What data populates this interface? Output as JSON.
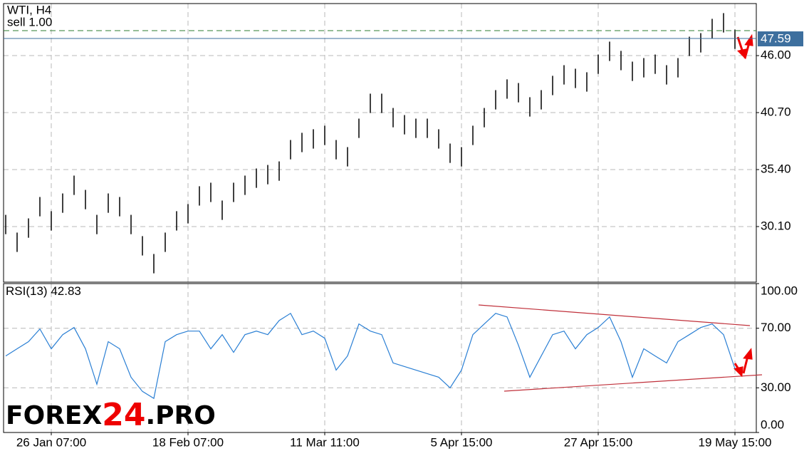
{
  "chart_data": [
    {
      "type": "ohlc",
      "title": "WTI, H4",
      "order_label": "sell 1.00",
      "color": "#000000",
      "high": [
        31.19,
        29.54,
        30.86,
        32.85,
        31.53,
        33.18,
        34.84,
        33.51,
        31.19,
        33.18,
        32.85,
        31.19,
        29.21,
        27.55,
        29.54,
        31.53,
        32.19,
        33.85,
        34.18,
        32.52,
        34.18,
        34.84,
        35.5,
        35.83,
        36.16,
        38.15,
        38.82,
        39.15,
        39.48,
        38.15,
        37.49,
        40.14,
        42.46,
        42.46,
        41.13,
        40.47,
        40.14,
        40.14,
        39.15,
        37.82,
        37.49,
        39.48,
        41.13,
        42.79,
        43.79,
        43.45,
        42.13,
        42.79,
        44.12,
        45.11,
        44.78,
        44.45,
        46.1,
        47.3,
        46.44,
        45.44,
        45.77,
        46.1,
        45.11,
        45.77,
        47.76,
        48.09,
        49.42,
        49.95,
        48.42
      ],
      "low": [
        29.39,
        27.74,
        29.06,
        31.05,
        29.73,
        31.38,
        33.04,
        31.71,
        29.39,
        31.38,
        31.05,
        29.39,
        27.41,
        25.75,
        27.74,
        29.73,
        30.39,
        32.05,
        32.38,
        30.72,
        32.38,
        33.04,
        33.7,
        34.03,
        34.36,
        36.35,
        37.02,
        37.35,
        37.68,
        36.35,
        35.69,
        38.34,
        40.66,
        40.66,
        39.33,
        38.67,
        38.34,
        38.34,
        37.35,
        36.02,
        35.69,
        37.68,
        39.33,
        40.99,
        41.99,
        41.65,
        40.33,
        40.99,
        42.32,
        43.31,
        42.98,
        42.65,
        44.3,
        45.5,
        44.64,
        43.64,
        43.97,
        44.3,
        43.31,
        43.97,
        45.96,
        46.29,
        47.62,
        48.15,
        46.62
      ],
      "current_price": {
        "value": 47.59,
        "label": "47.59"
      },
      "current_color": "#3d6f9e",
      "sell_price": 48.32,
      "sell_color": "#2e7d32",
      "ylim": [
        24.93,
        50.84
      ],
      "yticks": [
        {
          "value": 46,
          "label": "46.00"
        },
        {
          "value": 40.7,
          "label": "40.70"
        },
        {
          "value": 35.4,
          "label": "35.40"
        },
        {
          "value": 30.1,
          "label": "30.10"
        }
      ],
      "grid": true
    },
    {
      "type": "line",
      "title": "RSI(13)",
      "current": 42.83,
      "color": "#2a7fd4",
      "categories": [
        null,
        null,
        null,
        null,
        "26 Jan 07:00",
        null,
        null,
        null,
        null,
        null,
        null,
        null,
        null,
        null,
        null,
        null,
        "18 Feb 07:00",
        null,
        null,
        null,
        null,
        null,
        null,
        null,
        null,
        null,
        null,
        null,
        "11 Mar 11:00",
        null,
        null,
        null,
        null,
        null,
        null,
        null,
        null,
        null,
        null,
        null,
        "5 Apr 15:00",
        null,
        null,
        null,
        null,
        null,
        null,
        null,
        null,
        null,
        null,
        null,
        "27 Apr 15:00",
        null,
        null,
        null,
        null,
        null,
        null,
        null,
        null,
        null,
        null,
        null,
        "19 May 15:00"
      ],
      "values": [
        51.4,
        56.2,
        61.0,
        69.5,
        56.2,
        65.7,
        70.5,
        56.2,
        32.4,
        61.0,
        56.2,
        37.1,
        27.6,
        22.9,
        61.0,
        65.7,
        68.1,
        68.1,
        56.2,
        65.7,
        53.8,
        65.7,
        68.1,
        65.7,
        75.2,
        80.0,
        65.7,
        68.1,
        63.3,
        41.9,
        51.4,
        72.9,
        68.1,
        65.7,
        46.7,
        44.3,
        41.9,
        39.5,
        37.1,
        30.0,
        41.9,
        65.7,
        72.9,
        80.0,
        77.6,
        58.6,
        37.1,
        51.4,
        65.7,
        68.1,
        56.2,
        65.7,
        70.5,
        77.6,
        61.0,
        37.1,
        56.2,
        51.4,
        46.7,
        61.0,
        65.7,
        70.5,
        72.9,
        65.7,
        42.83
      ],
      "ylim": [
        0,
        100
      ],
      "yticks": [
        {
          "value": 100,
          "label": "100.00"
        },
        {
          "value": 70,
          "label": "70.00"
        },
        {
          "value": 30,
          "label": "30.00"
        },
        {
          "value": 0,
          "label": "0.00"
        }
      ],
      "grid": true
    }
  ],
  "watermark": [
    "FOREX",
    "24",
    ".PRO"
  ]
}
